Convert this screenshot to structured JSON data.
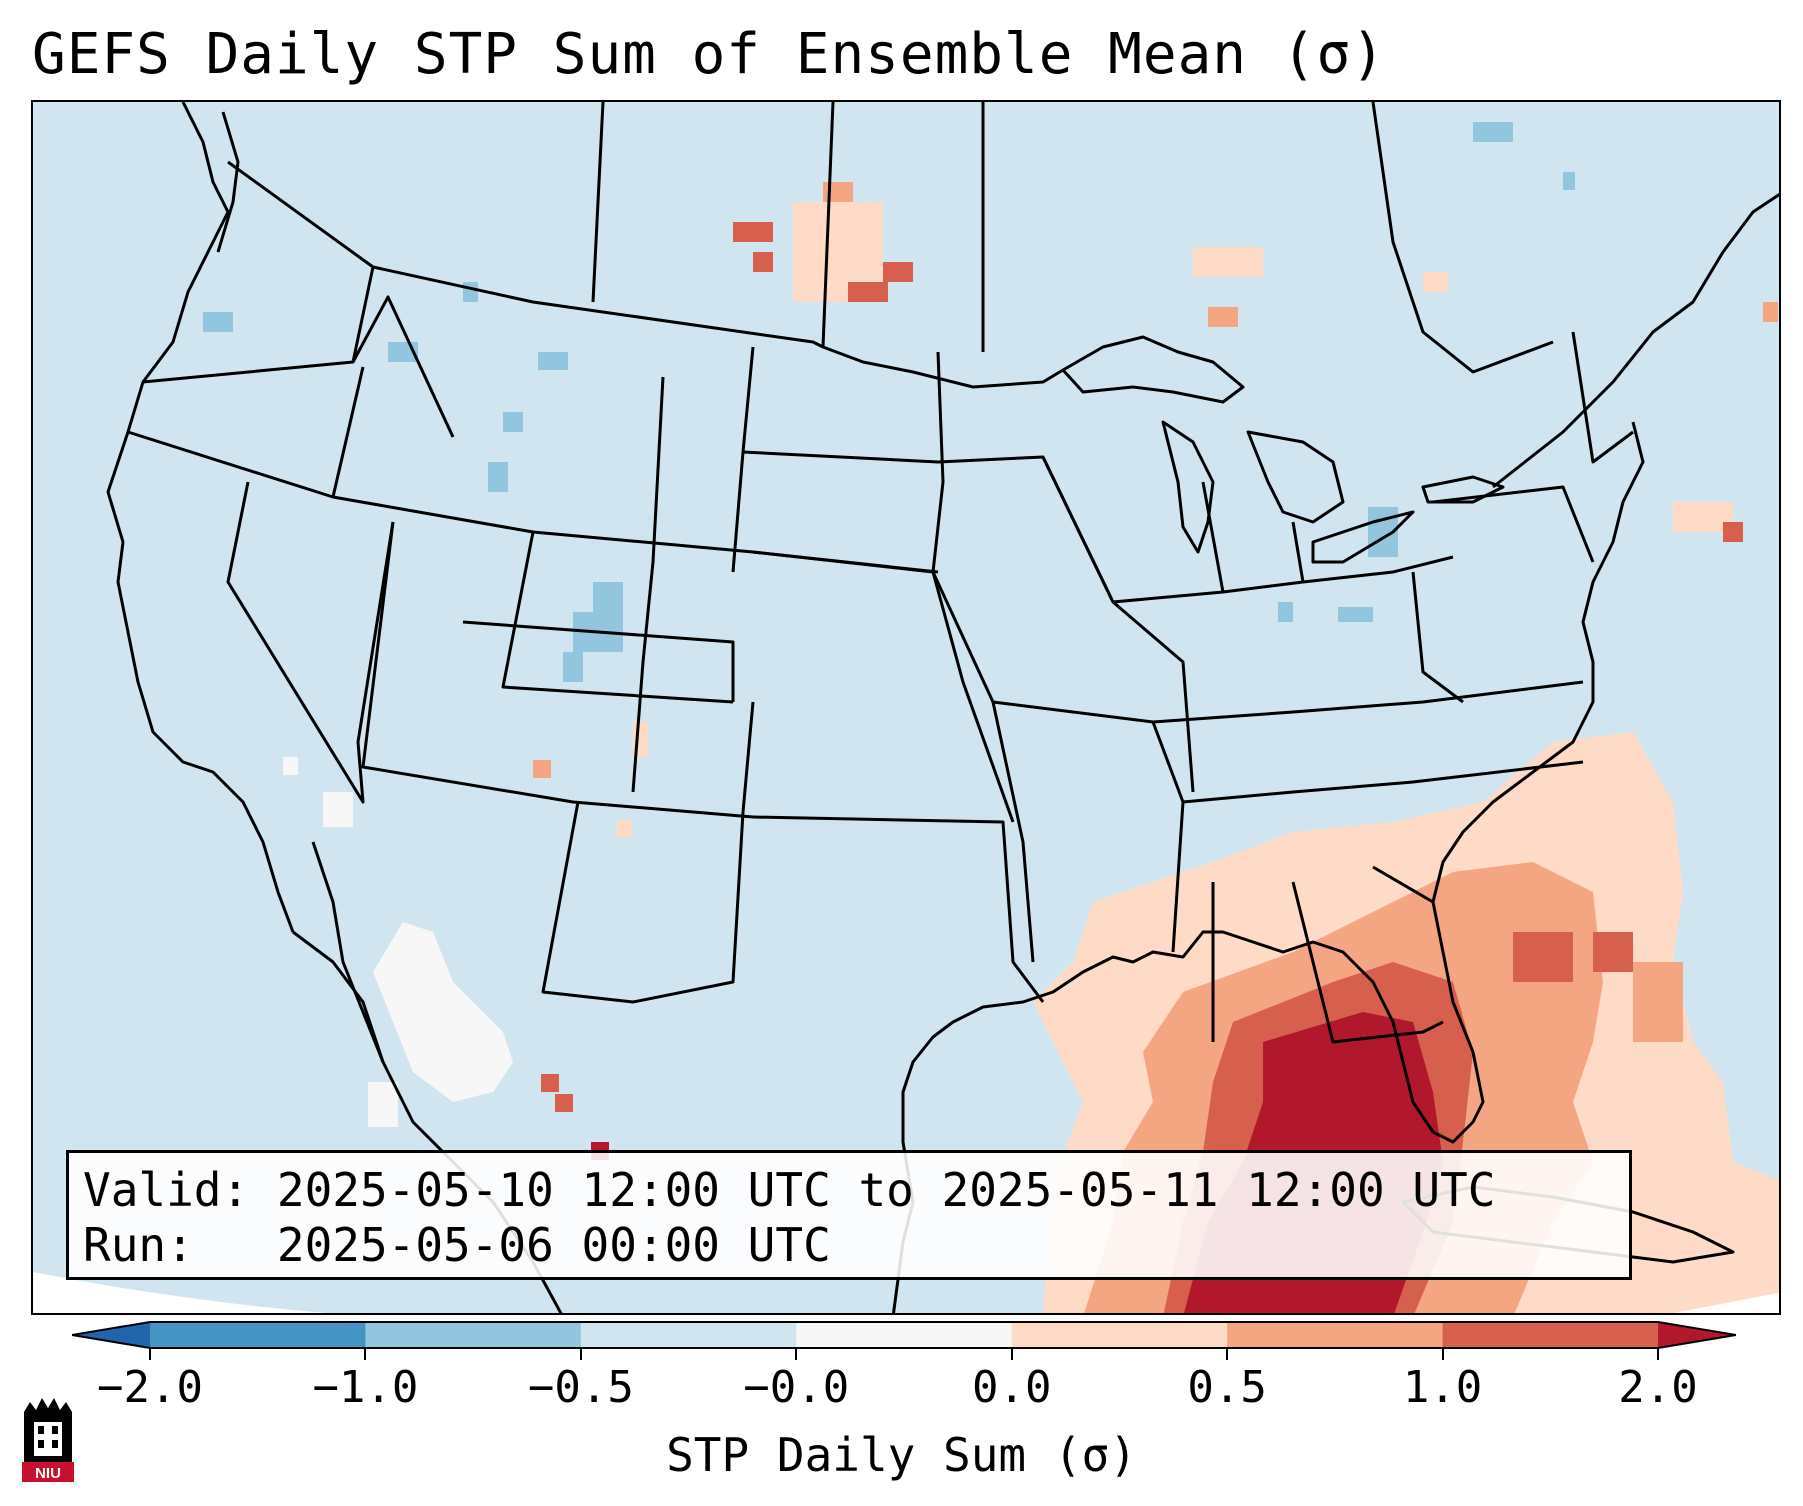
{
  "title": "GEFS Daily STP Sum of Ensemble Mean (σ)",
  "info": {
    "valid_label": "Valid:",
    "valid_text": "2025-05-10 12:00 UTC to 2025-05-11 12:00 UTC",
    "run_label": "Run:",
    "run_text": "2025-05-06 00:00 UTC"
  },
  "colorbar": {
    "label": "STP Daily Sum (σ)",
    "ticks": [
      "−2.0",
      "−1.0",
      "−0.5",
      "−0.0",
      "0.0",
      "0.5",
      "1.0",
      "2.0"
    ],
    "colors": [
      "#4393c3",
      "#92c5de",
      "#d1e5f0",
      "#f7f7f7",
      "#fddbc7",
      "#f4a582",
      "#d6604d"
    ],
    "extend_low_color": "#2166ac",
    "extend_high_color": "#b2182b"
  },
  "logo": {
    "text": "NIU",
    "icon": "niu-tower-logo"
  },
  "map_colors": {
    "ocean_land": "#d1e5f0",
    "light_pink": "#fddbc7",
    "salmon": "#f4a582",
    "red": "#d6604d",
    "dark_red": "#b2182b",
    "light_blue": "#92c5de",
    "white": "#f7f7f7"
  }
}
